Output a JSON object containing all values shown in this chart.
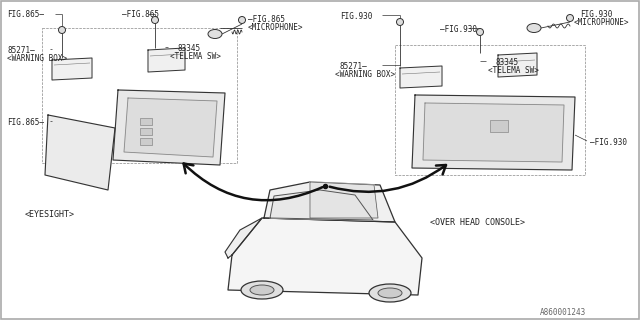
{
  "bg_color": "#ffffff",
  "line_color": "#333333",
  "text_color": "#333333",
  "part_number": "A860001243",
  "labels": {
    "eyesight": "<EYESIGHT>",
    "overhead": "<OVER HEAD CONSOLE>"
  },
  "fig_size": [
    6.4,
    3.2
  ],
  "dpi": 100
}
